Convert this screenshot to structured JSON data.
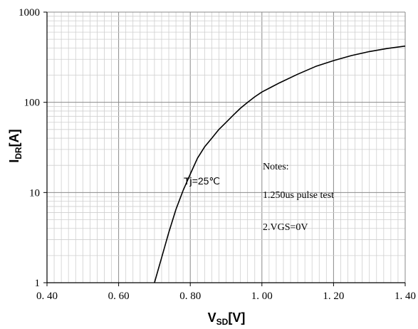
{
  "chart_data": {
    "type": "line",
    "xlabel_main": "V",
    "xlabel_sub": "SD",
    "xlabel_unit": "[V]",
    "ylabel_main": "I",
    "ylabel_sub": "DR",
    "ylabel_unit": "[A]",
    "xlim": [
      0.4,
      1.4
    ],
    "ylim": [
      1,
      1000
    ],
    "yscale": "log",
    "grid": true,
    "x_ticks": [
      0.4,
      0.6,
      0.8,
      1.0,
      1.2,
      1.4
    ],
    "x_tick_labels": [
      "0. 40",
      "0. 60",
      "0. 80",
      "1. 00",
      "1. 20",
      "1. 40"
    ],
    "y_ticks": [
      1,
      10,
      100,
      1000
    ],
    "y_tick_labels": [
      "1",
      "10",
      "100",
      "1000"
    ],
    "series": [
      {
        "x": [
          0.7,
          0.72,
          0.74,
          0.76,
          0.78,
          0.8,
          0.82,
          0.84,
          0.86,
          0.88,
          0.9,
          0.92,
          0.94,
          0.96,
          0.98,
          1.0,
          1.05,
          1.1,
          1.15,
          1.2,
          1.25,
          1.3,
          1.35,
          1.4
        ],
        "y": [
          1.0,
          1.9,
          3.6,
          6.5,
          10.5,
          16.0,
          24.0,
          32.0,
          40.0,
          50.0,
          60.0,
          72.0,
          86.0,
          100.0,
          115.0,
          130.0,
          165.0,
          205.0,
          250.0,
          290.0,
          330.0,
          365.0,
          395.0,
          420.0
        ]
      }
    ],
    "annotations": {
      "tj": "Tj=25℃",
      "notes_title": "Notes:",
      "note1": "1.250us pulse test",
      "note2": "2.VGS=0V"
    }
  }
}
